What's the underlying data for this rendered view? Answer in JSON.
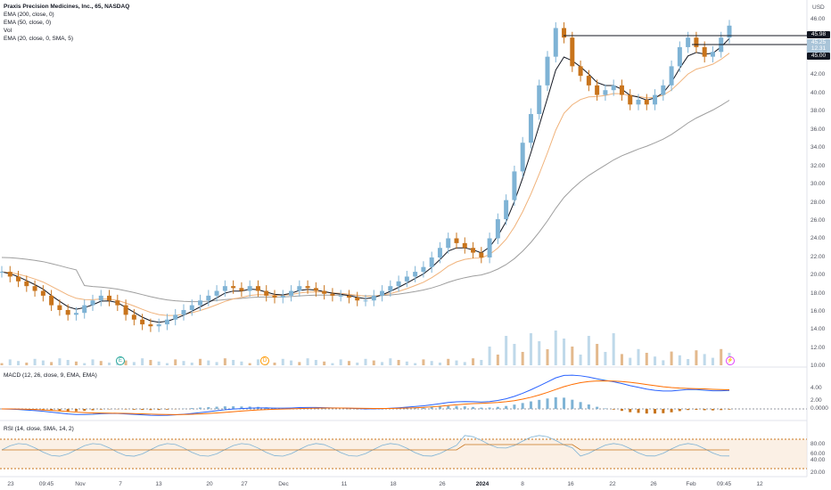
{
  "legend": {
    "title": "Praxis Precision Medicines, Inc., 65, NASDAQ",
    "lines": [
      "EMA (200, close, 0)",
      "EMA (50, close, 0)",
      "Vol",
      "EMA (20, close, 0, SMA, 5)"
    ]
  },
  "macd_label": "MACD (12, 26, close, 9, EMA, EMA)",
  "rsi_label": "RSI (14, close, SMA, 14, 2)",
  "currency": "USD",
  "price_axis": [
    "46.00",
    "42.00",
    "40.00",
    "38.00",
    "36.00",
    "34.00",
    "32.00",
    "30.00",
    "28.00",
    "26.00",
    "24.00",
    "22.00",
    "20.00",
    "18.00",
    "16.00",
    "14.00",
    "12.00",
    "10.00"
  ],
  "macd_axis": [
    "4.00",
    "2.00",
    "0.0000"
  ],
  "rsi_axis": [
    "80.00",
    "60.00",
    "40.00",
    "20.00"
  ],
  "price_badges": [
    {
      "text": "45.98",
      "color": "#131722"
    },
    {
      "text": "45.25",
      "color": "#a9c4d8"
    },
    {
      "text": "12.31",
      "color": "#a9c4d8"
    },
    {
      "text": "45.00",
      "color": "#131722"
    }
  ],
  "time_axis": [
    {
      "label": "23",
      "bold": false
    },
    {
      "label": "09:45",
      "bold": false
    },
    {
      "label": "Nov",
      "bold": false
    },
    {
      "label": "7",
      "bold": false
    },
    {
      "label": "13",
      "bold": false
    },
    {
      "label": "20",
      "bold": false
    },
    {
      "label": "27",
      "bold": false
    },
    {
      "label": "Dec",
      "bold": false
    },
    {
      "label": "11",
      "bold": false
    },
    {
      "label": "18",
      "bold": false
    },
    {
      "label": "26",
      "bold": false
    },
    {
      "label": "2024",
      "bold": true
    },
    {
      "label": "8",
      "bold": false
    },
    {
      "label": "16",
      "bold": false
    },
    {
      "label": "22",
      "bold": false
    },
    {
      "label": "26",
      "bold": false
    },
    {
      "label": "Feb",
      "bold": false
    },
    {
      "label": "09:45",
      "bold": false
    },
    {
      "label": "12",
      "bold": false
    }
  ],
  "events": [
    {
      "label": "E",
      "color": "#26a69a",
      "name": "earnings-event-icon"
    },
    {
      "label": "D",
      "color": "#ff9800",
      "name": "dividend-event-icon"
    },
    {
      "label": "⚡",
      "color": "#e040fb",
      "name": "news-event-icon"
    }
  ],
  "colors": {
    "up": "#7fb3d5",
    "down": "#c8741c",
    "ema20": "#131722",
    "ema50": "#f0b27a",
    "ema200": "#9e9e9e"
  },
  "chart_data": {
    "type": "candlestick",
    "ylim": [
      10,
      47
    ],
    "close_series_approx": [
      19.5,
      19,
      18.5,
      18,
      17.5,
      17,
      16,
      15.5,
      15,
      15.2,
      16,
      16.5,
      17,
      16.5,
      16,
      15,
      14.5,
      14,
      13.8,
      14,
      14.5,
      15,
      15.5,
      16,
      16.5,
      17,
      17.5,
      18,
      17.8,
      17.5,
      18,
      17.5,
      17,
      16.8,
      17,
      17.5,
      18,
      17.8,
      17.5,
      17.2,
      17,
      17,
      16.8,
      16.5,
      16.5,
      17,
      17.5,
      18,
      18.5,
      19,
      19.5,
      20,
      21,
      22,
      23,
      22.5,
      22,
      21.5,
      21,
      23,
      25,
      27,
      30,
      33,
      36,
      39,
      42,
      45,
      44,
      41,
      40,
      39,
      38,
      38.5,
      39,
      38,
      37,
      37.5,
      37,
      38,
      39,
      41,
      43,
      44,
      43,
      42,
      42.5,
      44,
      45.25
    ]
  }
}
